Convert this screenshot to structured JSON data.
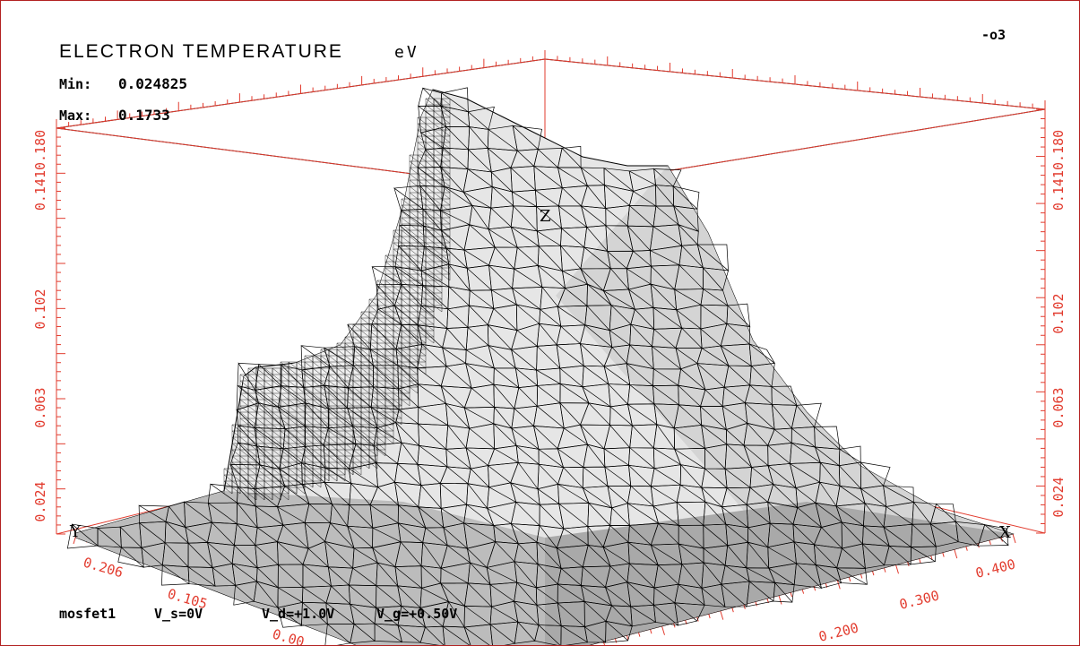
{
  "chart_data": {
    "type": "surface",
    "title": "ELECTRON TEMPERATURE",
    "unit": "eV",
    "plot_id": "-o3",
    "min_label": "Min:",
    "min_value": "0.024825",
    "max_label": "Max:",
    "max_value": "0.1733",
    "z_ticks": [
      "0.024",
      "0.063",
      "0.102",
      "0.1410.180"
    ],
    "z_ticks_left": [
      "0.024",
      "0.063",
      "0.102",
      "0.1410.180"
    ],
    "x_axis_letter": "X",
    "y_axis_letter": "Y",
    "z_axis_letter": "Z",
    "x_ticks": [
      "0.200",
      "0.300",
      "0.400"
    ],
    "y_ticks": [
      "0.206",
      "0.105",
      "0.00"
    ],
    "zlim": [
      0.024825,
      0.1733
    ],
    "footer": {
      "device": "mosfet1",
      "vs": "V_s=0V",
      "vd": "V_d=+1.0V",
      "vg": "V_g=+0.50V"
    },
    "colors": {
      "axis": "#e23b2e",
      "frame": "#b22222",
      "mesh": "#000000",
      "surface_light": "#f2f2f2",
      "surface_dark": "#8a8a8a"
    }
  }
}
